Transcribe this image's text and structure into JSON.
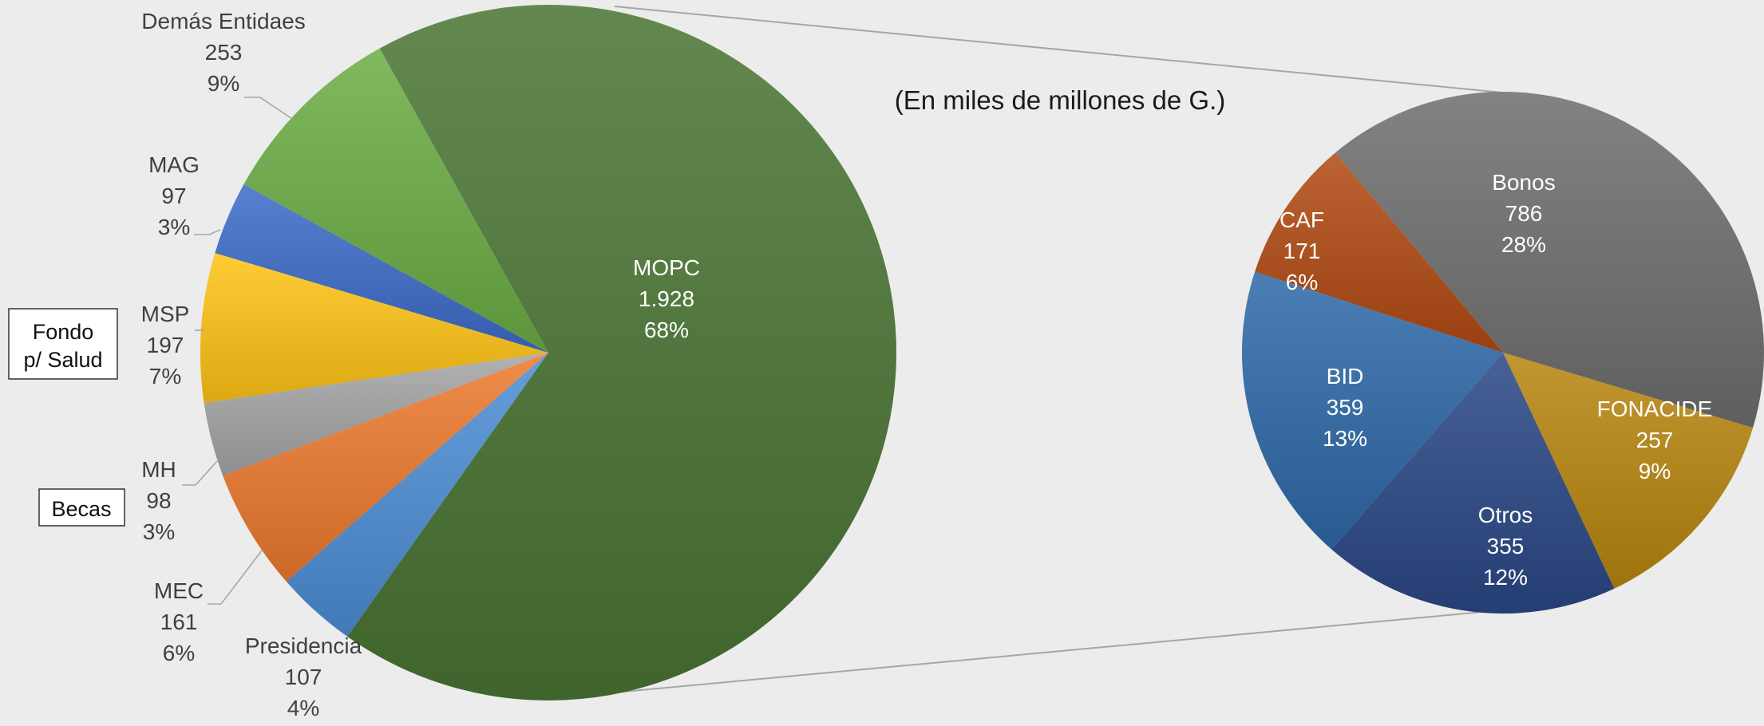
{
  "subtitle": "(En miles de millones de G.)",
  "callouts": {
    "fondo_line1": "Fondo",
    "fondo_line2": "p/ Salud",
    "becas": "Becas"
  },
  "chart_data": [
    {
      "type": "pie",
      "title": "",
      "slices": [
        {
          "name": "MOPC",
          "value": "1.928",
          "percent": "68%",
          "color": "#4a7533"
        },
        {
          "name": "Presidencia",
          "value": "107",
          "percent": "4%",
          "color": "#4d8ed6"
        },
        {
          "name": "MEC",
          "value": "161",
          "percent": "6%",
          "color": "#ee7a2e"
        },
        {
          "name": "MH",
          "value": "98",
          "percent": "3%",
          "color": "#a5a5a5"
        },
        {
          "name": "MSP",
          "value": "197",
          "percent": "7%",
          "color": "#ffc414"
        },
        {
          "name": "MAG",
          "value": "97",
          "percent": "3%",
          "color": "#3d6cc9"
        },
        {
          "name": "Demás Entidaes",
          "value": "253",
          "percent": "9%",
          "color": "#6cad45"
        }
      ]
    },
    {
      "type": "pie",
      "title": "",
      "slices": [
        {
          "name": "Bonos",
          "value": "786",
          "percent": "28%",
          "color": "#6e6e6e"
        },
        {
          "name": "FONACIDE",
          "value": "257",
          "percent": "9%",
          "color": "#b8860f"
        },
        {
          "name": "Otros",
          "value": "355",
          "percent": "12%",
          "color": "#2a4785"
        },
        {
          "name": "BID",
          "value": "359",
          "percent": "13%",
          "color": "#2e69a8"
        },
        {
          "name": "CAF",
          "value": "171",
          "percent": "6%",
          "color": "#b24a12"
        }
      ]
    }
  ]
}
